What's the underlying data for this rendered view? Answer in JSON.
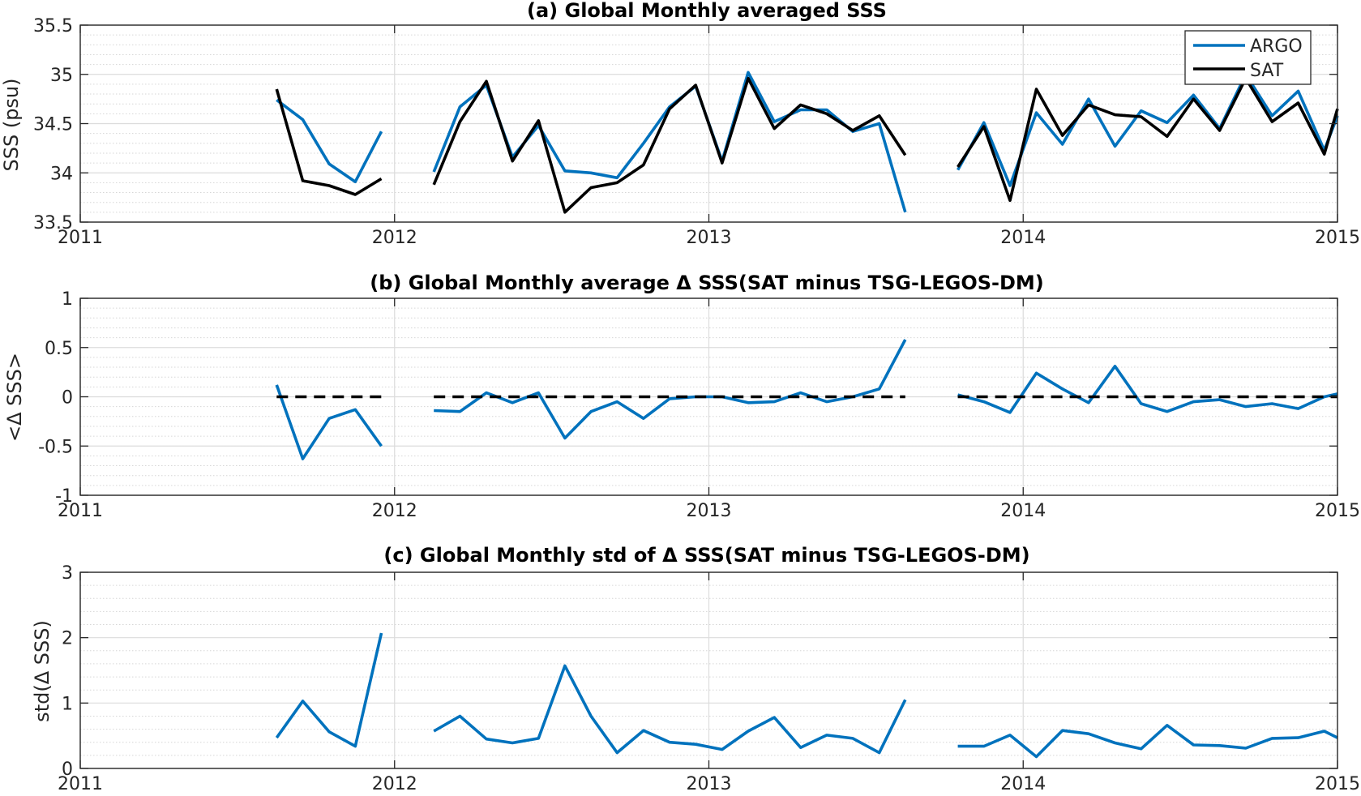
{
  "chart_data": [
    {
      "type": "line",
      "title": "(a) Global Monthly averaged SSS",
      "xlabel": "",
      "ylabel": "SSS (psu)",
      "xlim": [
        2011,
        2015
      ],
      "ylim": [
        33.5,
        35.5
      ],
      "xticks": [
        2011,
        2012,
        2013,
        2014,
        2015
      ],
      "xtick_labels": [
        "2011",
        "2012",
        "2013",
        "2014",
        "2015"
      ],
      "yticks": [
        33.5,
        34,
        34.5,
        35,
        35.5
      ],
      "ytick_labels": [
        "33.5",
        "34",
        "34.5",
        "35",
        "35.5"
      ],
      "ygrid_minor_step": 0.1,
      "grid": true,
      "legend": "top-right",
      "series": [
        {
          "name": "ARGO",
          "color": "#0072BD",
          "segments": [
            [
              [
                2011.625,
                34.74
              ],
              [
                2011.708,
                34.54
              ],
              [
                2011.792,
                34.09
              ],
              [
                2011.875,
                33.91
              ],
              [
                2011.958,
                34.42
              ]
            ],
            [
              [
                2012.125,
                34.01
              ],
              [
                2012.208,
                34.67
              ],
              [
                2012.292,
                34.89
              ],
              [
                2012.375,
                34.16
              ],
              [
                2012.458,
                34.48
              ],
              [
                2012.542,
                34.02
              ],
              [
                2012.625,
                34.0
              ],
              [
                2012.708,
                33.95
              ],
              [
                2012.792,
                34.3
              ],
              [
                2012.875,
                34.67
              ],
              [
                2012.958,
                34.88
              ],
              [
                2013.042,
                34.12
              ],
              [
                2013.125,
                35.02
              ],
              [
                2013.208,
                34.52
              ],
              [
                2013.292,
                34.64
              ],
              [
                2013.375,
                34.64
              ],
              [
                2013.458,
                34.42
              ],
              [
                2013.542,
                34.5
              ],
              [
                2013.625,
                33.6
              ]
            ],
            [
              [
                2013.792,
                34.03
              ],
              [
                2013.875,
                34.51
              ],
              [
                2013.958,
                33.87
              ],
              [
                2014.042,
                34.61
              ],
              [
                2014.125,
                34.29
              ],
              [
                2014.208,
                34.75
              ],
              [
                2014.292,
                34.27
              ],
              [
                2014.375,
                34.63
              ],
              [
                2014.458,
                34.51
              ],
              [
                2014.542,
                34.79
              ],
              [
                2014.625,
                34.45
              ],
              [
                2014.708,
                35.0
              ],
              [
                2014.792,
                34.58
              ],
              [
                2014.875,
                34.83
              ],
              [
                2014.958,
                34.23
              ],
              [
                2015.0,
                34.58
              ]
            ]
          ]
        },
        {
          "name": "SAT",
          "color": "#000000",
          "segments": [
            [
              [
                2011.625,
                34.85
              ],
              [
                2011.708,
                33.92
              ],
              [
                2011.792,
                33.87
              ],
              [
                2011.875,
                33.78
              ],
              [
                2011.958,
                33.94
              ]
            ],
            [
              [
                2012.125,
                33.88
              ],
              [
                2012.208,
                34.52
              ],
              [
                2012.292,
                34.93
              ],
              [
                2012.375,
                34.12
              ],
              [
                2012.458,
                34.53
              ],
              [
                2012.542,
                33.6
              ],
              [
                2012.625,
                33.85
              ],
              [
                2012.708,
                33.9
              ],
              [
                2012.792,
                34.08
              ],
              [
                2012.875,
                34.65
              ],
              [
                2012.958,
                34.89
              ],
              [
                2013.042,
                34.1
              ],
              [
                2013.125,
                34.96
              ],
              [
                2013.208,
                34.45
              ],
              [
                2013.292,
                34.69
              ],
              [
                2013.375,
                34.6
              ],
              [
                2013.458,
                34.43
              ],
              [
                2013.542,
                34.58
              ],
              [
                2013.625,
                34.18
              ]
            ],
            [
              [
                2013.792,
                34.06
              ],
              [
                2013.875,
                34.47
              ],
              [
                2013.958,
                33.72
              ],
              [
                2014.042,
                34.85
              ],
              [
                2014.125,
                34.38
              ],
              [
                2014.208,
                34.69
              ],
              [
                2014.292,
                34.59
              ],
              [
                2014.375,
                34.57
              ],
              [
                2014.458,
                34.37
              ],
              [
                2014.542,
                34.75
              ],
              [
                2014.625,
                34.43
              ],
              [
                2014.708,
                34.96
              ],
              [
                2014.792,
                34.52
              ],
              [
                2014.875,
                34.71
              ],
              [
                2014.958,
                34.19
              ],
              [
                2015.0,
                34.65
              ]
            ]
          ]
        }
      ]
    },
    {
      "type": "line",
      "title": "(b) Global Monthly average Δ SSS(SAT minus TSG-LEGOS-DM)",
      "xlabel": "",
      "ylabel": "<Δ SSS>",
      "xlim": [
        2011,
        2015
      ],
      "ylim": [
        -1,
        1
      ],
      "xticks": [
        2011,
        2012,
        2013,
        2014,
        2015
      ],
      "xtick_labels": [
        "2011",
        "2012",
        "2013",
        "2014",
        "2015"
      ],
      "yticks": [
        -1,
        -0.5,
        0,
        0.5,
        1
      ],
      "ytick_labels": [
        "-1",
        "-0.5",
        "0",
        "0.5",
        "1"
      ],
      "ygrid_minor_step": 0.1,
      "grid": true,
      "series": [
        {
          "color": "#0072BD",
          "segments": [
            [
              [
                2011.625,
                0.12
              ],
              [
                2011.708,
                -0.63
              ],
              [
                2011.792,
                -0.22
              ],
              [
                2011.875,
                -0.13
              ],
              [
                2011.958,
                -0.5
              ]
            ],
            [
              [
                2012.125,
                -0.14
              ],
              [
                2012.208,
                -0.15
              ],
              [
                2012.292,
                0.04
              ],
              [
                2012.375,
                -0.06
              ],
              [
                2012.458,
                0.04
              ],
              [
                2012.542,
                -0.42
              ],
              [
                2012.625,
                -0.15
              ],
              [
                2012.708,
                -0.05
              ],
              [
                2012.792,
                -0.22
              ],
              [
                2012.875,
                -0.02
              ],
              [
                2012.958,
                0.0
              ],
              [
                2013.042,
                0.0
              ],
              [
                2013.125,
                -0.06
              ],
              [
                2013.208,
                -0.05
              ],
              [
                2013.292,
                0.04
              ],
              [
                2013.375,
                -0.05
              ],
              [
                2013.458,
                0.0
              ],
              [
                2013.542,
                0.08
              ],
              [
                2013.625,
                0.58
              ]
            ],
            [
              [
                2013.792,
                0.02
              ],
              [
                2013.875,
                -0.05
              ],
              [
                2013.958,
                -0.16
              ],
              [
                2014.042,
                0.24
              ],
              [
                2014.125,
                0.08
              ],
              [
                2014.208,
                -0.06
              ],
              [
                2014.292,
                0.31
              ],
              [
                2014.375,
                -0.07
              ],
              [
                2014.458,
                -0.15
              ],
              [
                2014.542,
                -0.05
              ],
              [
                2014.625,
                -0.03
              ],
              [
                2014.708,
                -0.1
              ],
              [
                2014.792,
                -0.07
              ],
              [
                2014.875,
                -0.12
              ],
              [
                2014.958,
                0.0
              ],
              [
                2015.0,
                0.03
              ]
            ]
          ]
        },
        {
          "color": "#000000",
          "style": "dashed",
          "segments": [
            [
              [
                2011.625,
                0
              ],
              [
                2011.958,
                0
              ]
            ],
            [
              [
                2012.125,
                0
              ],
              [
                2013.625,
                0
              ]
            ],
            [
              [
                2013.792,
                0
              ],
              [
                2015.0,
                0
              ]
            ]
          ]
        }
      ]
    },
    {
      "type": "line",
      "title": "(c) Global Monthly std of Δ SSS(SAT minus TSG-LEGOS-DM)",
      "xlabel": "",
      "ylabel": "std(Δ SSS)",
      "xlim": [
        2011,
        2015
      ],
      "ylim": [
        0,
        3
      ],
      "xticks": [
        2011,
        2012,
        2013,
        2014,
        2015
      ],
      "xtick_labels": [
        "2011",
        "2012",
        "2013",
        "2014",
        "2015"
      ],
      "yticks": [
        0,
        1,
        2,
        3
      ],
      "ytick_labels": [
        "0",
        "1",
        "2",
        "3"
      ],
      "ygrid_minor_step": 0.2,
      "grid": true,
      "series": [
        {
          "color": "#0072BD",
          "segments": [
            [
              [
                2011.625,
                0.47
              ],
              [
                2011.708,
                1.03
              ],
              [
                2011.792,
                0.56
              ],
              [
                2011.875,
                0.34
              ],
              [
                2011.958,
                2.07
              ]
            ],
            [
              [
                2012.125,
                0.57
              ],
              [
                2012.208,
                0.8
              ],
              [
                2012.292,
                0.45
              ],
              [
                2012.375,
                0.39
              ],
              [
                2012.458,
                0.46
              ],
              [
                2012.542,
                1.57
              ],
              [
                2012.625,
                0.8
              ],
              [
                2012.708,
                0.24
              ],
              [
                2012.792,
                0.58
              ],
              [
                2012.875,
                0.4
              ],
              [
                2012.958,
                0.37
              ],
              [
                2013.042,
                0.29
              ],
              [
                2013.125,
                0.57
              ],
              [
                2013.208,
                0.78
              ],
              [
                2013.292,
                0.32
              ],
              [
                2013.375,
                0.51
              ],
              [
                2013.458,
                0.46
              ],
              [
                2013.542,
                0.24
              ],
              [
                2013.625,
                1.05
              ]
            ],
            [
              [
                2013.792,
                0.34
              ],
              [
                2013.875,
                0.34
              ],
              [
                2013.958,
                0.51
              ],
              [
                2014.042,
                0.18
              ],
              [
                2014.125,
                0.58
              ],
              [
                2014.208,
                0.53
              ],
              [
                2014.292,
                0.39
              ],
              [
                2014.375,
                0.3
              ],
              [
                2014.458,
                0.66
              ],
              [
                2014.542,
                0.36
              ],
              [
                2014.625,
                0.35
              ],
              [
                2014.708,
                0.31
              ],
              [
                2014.792,
                0.46
              ],
              [
                2014.875,
                0.47
              ],
              [
                2014.958,
                0.57
              ],
              [
                2015.0,
                0.47
              ]
            ]
          ]
        }
      ]
    }
  ]
}
